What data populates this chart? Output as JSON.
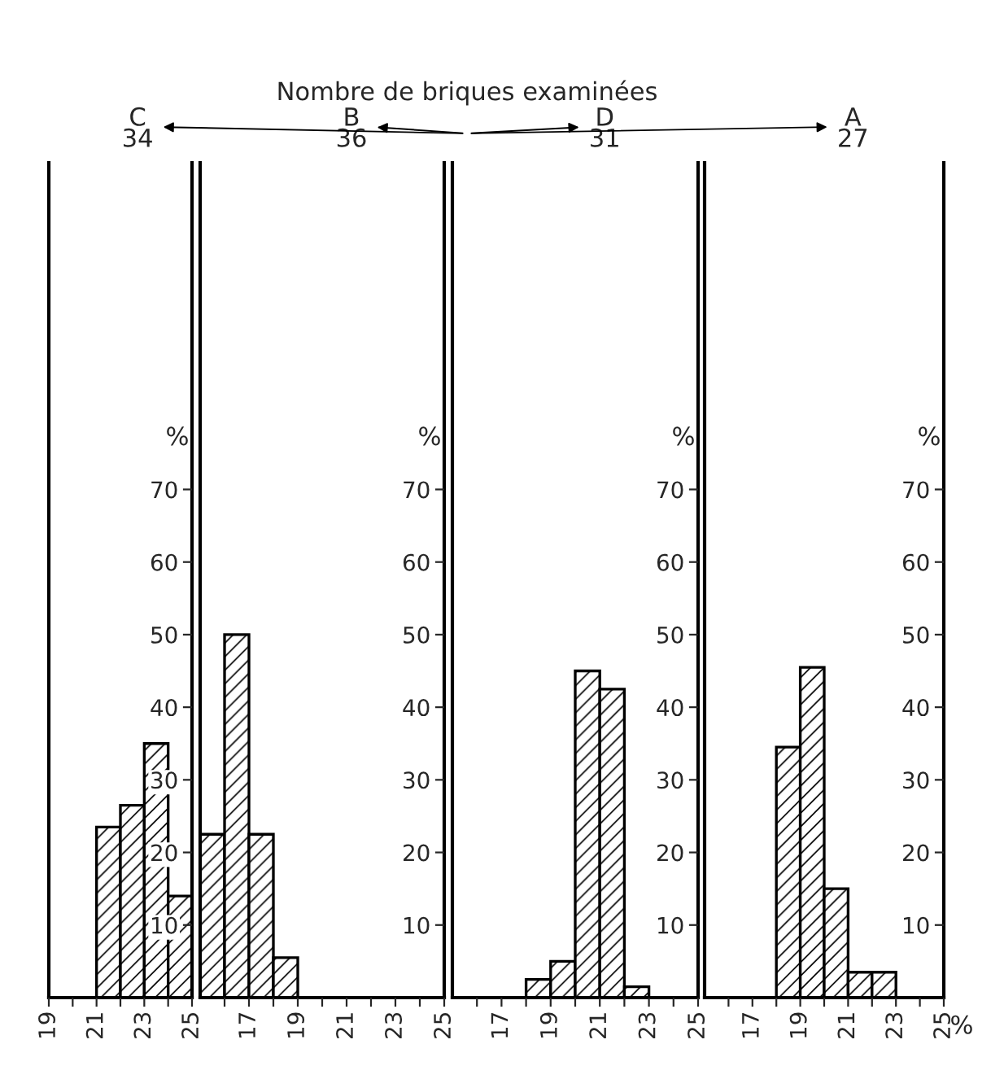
{
  "chart_data": [
    {
      "type": "histogram",
      "title": "C",
      "subtitle": "34",
      "annotations": [
        "Nombre de briques examinées"
      ],
      "ylabel": "%",
      "color": "#000000",
      "bins": [
        21,
        22,
        23,
        24,
        25
      ],
      "values": [
        23.5,
        26.5,
        35,
        14
      ],
      "xlim": [
        19,
        25
      ],
      "xticks": [
        19,
        {
          "value": 20,
          "label": null
        },
        21,
        {
          "value": 22,
          "label": null
        },
        23,
        {
          "value": 24,
          "label": null
        },
        25
      ],
      "ylim": [
        0,
        115
      ],
      "yticks": [
        10,
        20,
        30,
        40,
        50,
        60,
        70
      ]
    },
    {
      "type": "histogram",
      "title": "B",
      "subtitle": "36",
      "ylabel": "%",
      "color": "#000000",
      "bins": [
        15,
        16,
        17,
        18,
        19
      ],
      "values": [
        22.5,
        50,
        22.5,
        5.5
      ],
      "xlim": [
        15,
        25
      ],
      "xticks": [
        {
          "value": 16,
          "label": null
        },
        17,
        {
          "value": 18,
          "label": null
        },
        19,
        {
          "value": 20,
          "label": null
        },
        21,
        {
          "value": 22,
          "label": null
        },
        23,
        {
          "value": 24,
          "label": null
        },
        25
      ],
      "ylim": [
        0,
        115
      ],
      "yticks": [
        10,
        20,
        30,
        40,
        50,
        60,
        70
      ]
    },
    {
      "type": "histogram",
      "title": "D",
      "subtitle": "31",
      "ylabel": "%",
      "color": "#000000",
      "bins": [
        18,
        19,
        20,
        21,
        22,
        23
      ],
      "values": [
        2.5,
        5,
        45,
        42.5,
        1.5
      ],
      "xlim": [
        15,
        25
      ],
      "xticks": [
        {
          "value": 16,
          "label": null
        },
        17,
        {
          "value": 18,
          "label": null
        },
        19,
        {
          "value": 20,
          "label": null
        },
        21,
        {
          "value": 22,
          "label": null
        },
        23,
        {
          "value": 24,
          "label": null
        },
        25
      ],
      "ylim": [
        0,
        115
      ],
      "yticks": [
        10,
        20,
        30,
        40,
        50,
        60,
        70
      ]
    },
    {
      "type": "histogram",
      "title": "A",
      "subtitle": "27",
      "ylabel": "%",
      "xlabel": "%",
      "color": "#000000",
      "bins": [
        18,
        19,
        20,
        21,
        22,
        23
      ],
      "values": [
        34.5,
        45.5,
        15,
        3.5,
        3.5
      ],
      "xlim": [
        15,
        25
      ],
      "xticks": [
        {
          "value": 16,
          "label": null
        },
        17,
        {
          "value": 18,
          "label": null
        },
        19,
        {
          "value": 20,
          "label": null
        },
        21,
        {
          "value": 22,
          "label": null
        },
        23,
        {
          "value": 24,
          "label": null
        },
        25
      ],
      "ylim": [
        0,
        115
      ],
      "yticks": [
        10,
        20,
        30,
        40,
        50,
        60,
        70
      ]
    }
  ]
}
